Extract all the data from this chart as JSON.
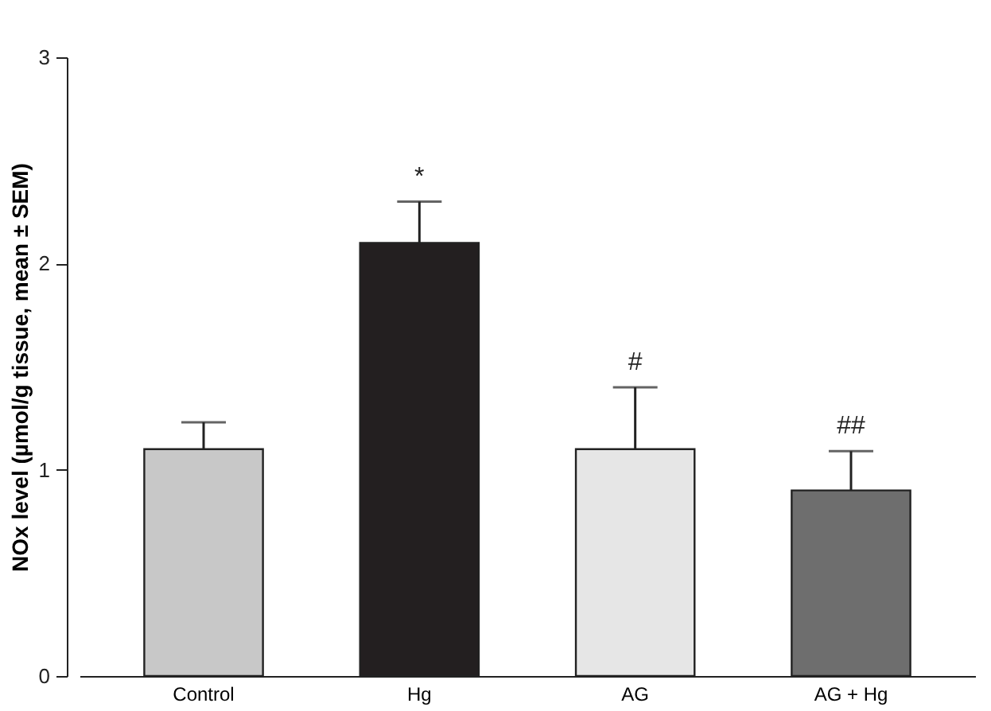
{
  "chart_data": {
    "type": "bar",
    "ylabel": "NOx level (µmol/g tissue, mean ± SEM)",
    "categories": [
      "Control",
      "Hg",
      "AG",
      "AG + Hg"
    ],
    "values": [
      1.1,
      2.1,
      1.1,
      0.9
    ],
    "colors": [
      "#c8c8c8",
      "#231f20",
      "#e6e6e6",
      "#6e6e6e"
    ],
    "errors": [
      [
        1.1,
        1.23
      ],
      [
        2.1,
        2.3
      ],
      [
        1.1,
        1.4
      ],
      [
        0.9,
        1.09
      ]
    ],
    "value_labels": [
      null,
      "*",
      "#",
      "##"
    ],
    "ylim": [
      0,
      3
    ],
    "yticks": [
      0,
      1,
      2,
      3
    ],
    "grid": false
  }
}
